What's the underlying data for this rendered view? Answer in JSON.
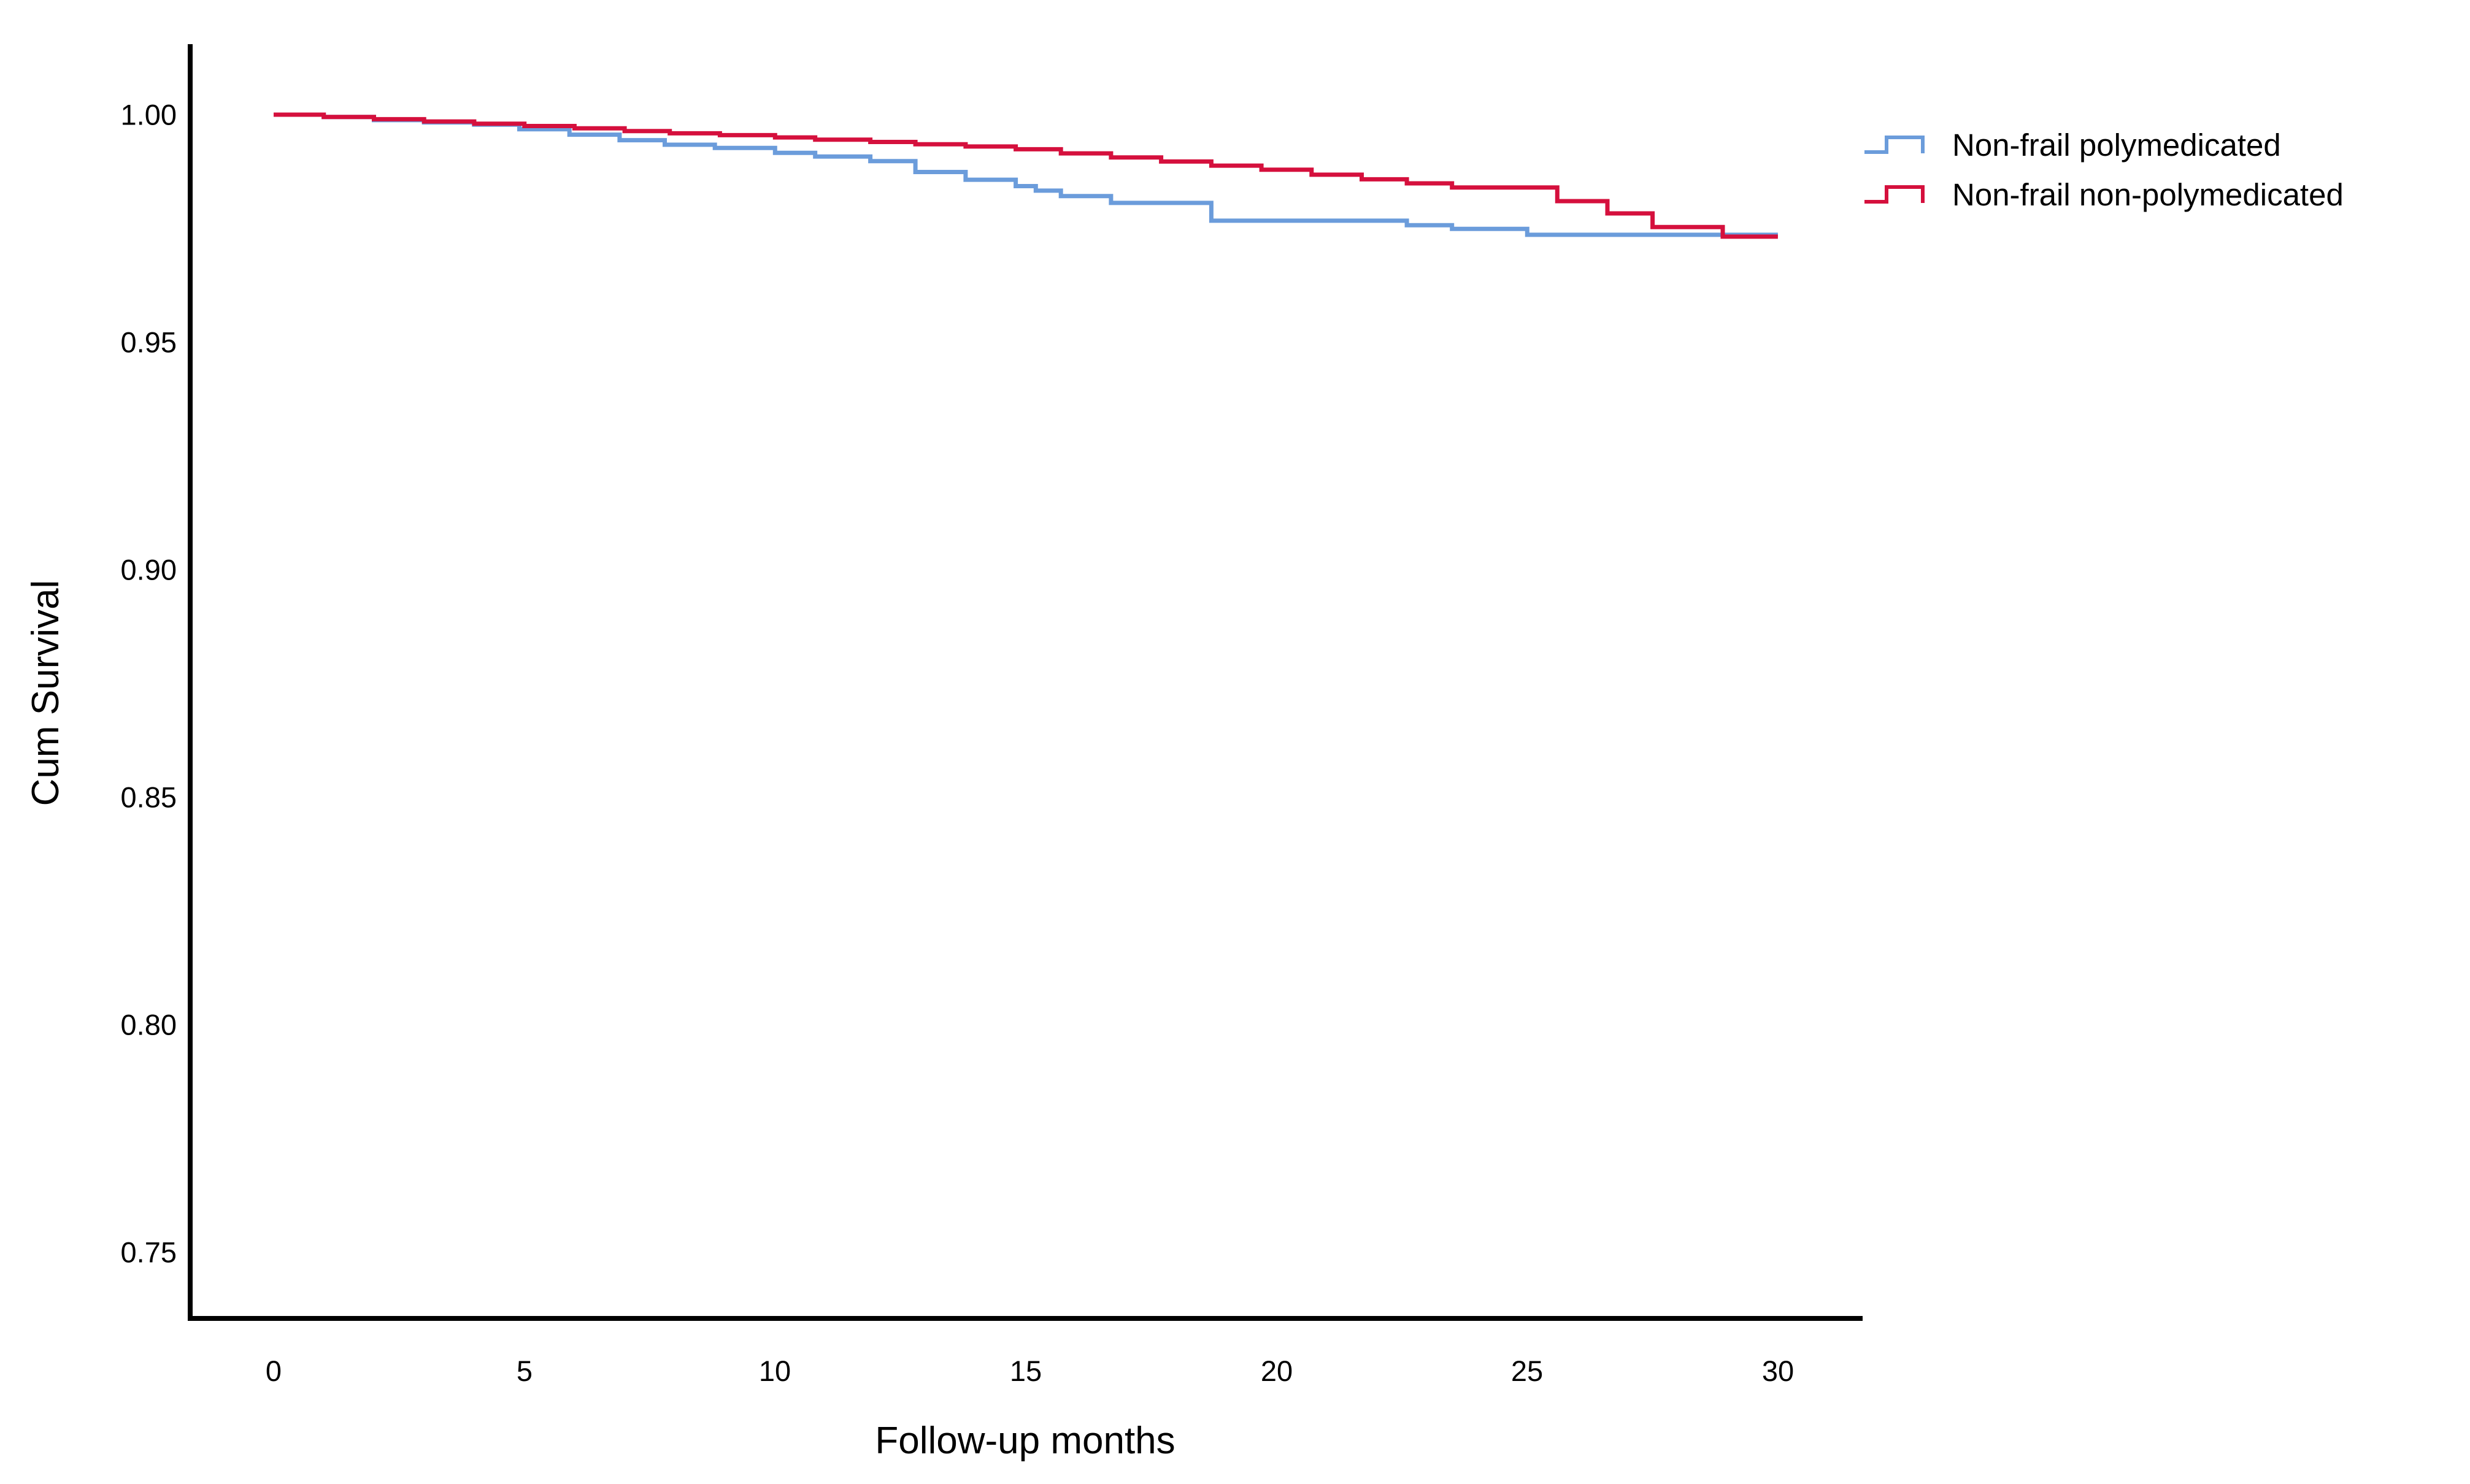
{
  "chart_data": {
    "type": "line",
    "subtype": "kaplan-meier-step",
    "title": "",
    "xlabel": "Follow-up months",
    "ylabel": "Cum Survival",
    "xlim": [
      0,
      30
    ],
    "ylim": [
      0.75,
      1.0
    ],
    "x_ticks": [
      "0",
      "5",
      "10",
      "15",
      "20",
      "25",
      "30"
    ],
    "x_tick_values": [
      0,
      5,
      10,
      15,
      20,
      25,
      30
    ],
    "y_ticks": [
      "1.00",
      "0.95",
      "0.90",
      "0.85",
      "0.80",
      "0.75"
    ],
    "y_tick_values": [
      1.0,
      0.95,
      0.9,
      0.85,
      0.8,
      0.75
    ],
    "grid": "off",
    "legend_position": "top-right",
    "series": [
      {
        "name": "Non-frail polymedicated",
        "color": "#6B9CDB",
        "points": [
          [
            0,
            1.0
          ],
          [
            1,
            0.9995
          ],
          [
            2,
            0.9988
          ],
          [
            3,
            0.9983
          ],
          [
            4,
            0.9978
          ],
          [
            4.9,
            0.9968
          ],
          [
            5.9,
            0.9956
          ],
          [
            6.9,
            0.9944
          ],
          [
            7.8,
            0.9934
          ],
          [
            8.8,
            0.9927
          ],
          [
            10,
            0.9916
          ],
          [
            10.8,
            0.9908
          ],
          [
            11.9,
            0.9898
          ],
          [
            12.8,
            0.9874
          ],
          [
            13.8,
            0.9857
          ],
          [
            14.8,
            0.9843
          ],
          [
            15.2,
            0.9833
          ],
          [
            15.7,
            0.9821
          ],
          [
            16.7,
            0.9806
          ],
          [
            18.7,
            0.9767
          ],
          [
            22.6,
            0.9757
          ],
          [
            23.5,
            0.9749
          ],
          [
            25,
            0.9736
          ],
          [
            30,
            0.9736
          ]
        ]
      },
      {
        "name": "Non-frail non-polymedicated",
        "color": "#D5103D",
        "points": [
          [
            0,
            1.0
          ],
          [
            1,
            0.9995
          ],
          [
            2,
            0.999
          ],
          [
            3,
            0.9985
          ],
          [
            4,
            0.998
          ],
          [
            5,
            0.9975
          ],
          [
            6,
            0.997
          ],
          [
            7,
            0.9964
          ],
          [
            7.9,
            0.9959
          ],
          [
            8.9,
            0.9955
          ],
          [
            10,
            0.995
          ],
          [
            10.8,
            0.9945
          ],
          [
            11.9,
            0.994
          ],
          [
            12.8,
            0.9935
          ],
          [
            13.8,
            0.993
          ],
          [
            14.8,
            0.9924
          ],
          [
            15.7,
            0.9915
          ],
          [
            16.7,
            0.9906
          ],
          [
            17.7,
            0.9897
          ],
          [
            18.7,
            0.9888
          ],
          [
            19.7,
            0.9879
          ],
          [
            20.7,
            0.9868
          ],
          [
            21.7,
            0.9858
          ],
          [
            22.6,
            0.9849
          ],
          [
            23.5,
            0.984
          ],
          [
            25.6,
            0.981
          ],
          [
            26.6,
            0.9783
          ],
          [
            27.5,
            0.9753
          ],
          [
            28.9,
            0.9732
          ],
          [
            30,
            0.9732
          ]
        ]
      }
    ]
  },
  "legend": {
    "entries": [
      {
        "label": "Non-frail polymedicated",
        "color": "#6B9CDB",
        "icon": "step-line-icon"
      },
      {
        "label": "Non-frail non-polymedicated",
        "color": "#D5103D",
        "icon": "step-line-icon"
      }
    ]
  },
  "axes": {
    "x_title": "Follow-up months",
    "y_title": "Cum Survival",
    "axis_color": "#000000"
  }
}
